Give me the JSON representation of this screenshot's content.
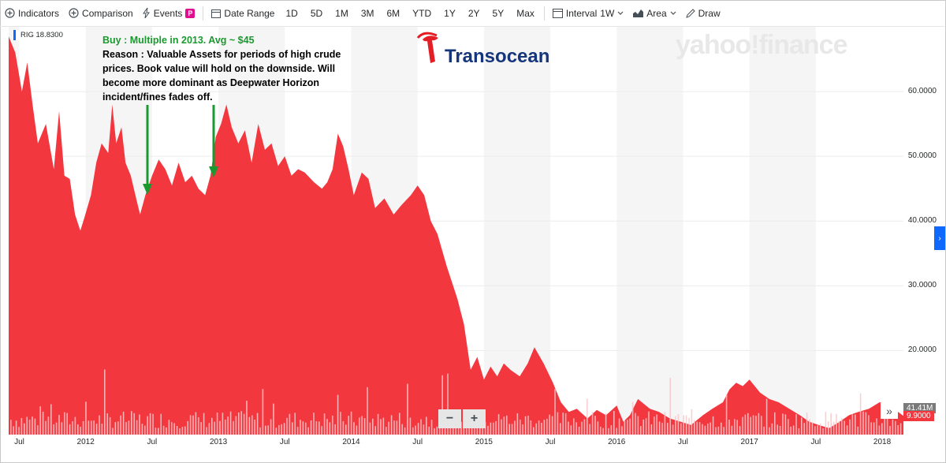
{
  "toolbar": {
    "indicators": "Indicators",
    "comparison": "Comparison",
    "events": "Events",
    "events_badge": "P",
    "date_range": "Date Range",
    "ranges": [
      "1D",
      "5D",
      "1M",
      "3M",
      "6M",
      "YTD",
      "1Y",
      "2Y",
      "5Y",
      "Max"
    ],
    "interval_label": "Interval",
    "interval_value": "1W",
    "chart_type": "Area",
    "draw": "Draw"
  },
  "ticker_label": "RIG 18.8300",
  "annotation": {
    "buy_line": "Buy : Multiple in 2013. Avg ~ $45",
    "reason": "Reason : Valuable Assets for periods of high crude prices. Book value will hold on the downside. Will become more dominant as Deepwater Horizon incident/fines fades off."
  },
  "logos": {
    "company": "Transocean",
    "site": "yahoo!finance"
  },
  "overlays": {
    "volume_label": "41.41M",
    "price_label": "9.9000"
  },
  "colors": {
    "area": "#f2373f",
    "volume_bar": "#f9c7c9",
    "shade": "#f5f5f5",
    "annotation_green": "#1a9a2e",
    "accent": "#0f69ff"
  },
  "chart_data": {
    "type": "area",
    "title": "",
    "ylim": [
      7,
      70
    ],
    "yticks": [
      "60.0000",
      "50.0000",
      "40.0000",
      "30.0000",
      "20.0000"
    ],
    "ytick_values": [
      60,
      50,
      40,
      30,
      20
    ],
    "xticks": [
      "Jul",
      "2012",
      "Jul",
      "2013",
      "Jul",
      "2014",
      "Jul",
      "2015",
      "Jul",
      "2016",
      "Jul",
      "2017",
      "Jul",
      "2018"
    ],
    "xtick_times": [
      2011.5,
      2012.0,
      2012.5,
      2013.0,
      2013.5,
      2014.0,
      2014.5,
      2015.0,
      2015.5,
      2016.0,
      2016.5,
      2017.0,
      2017.5,
      2018.0
    ],
    "x_range": [
      2011.42,
      2018.16
    ],
    "series": [
      {
        "x": [
          2011.42,
          2011.47,
          2011.52,
          2011.56,
          2011.6,
          2011.64,
          2011.7,
          2011.76,
          2011.8,
          2011.84,
          2011.88,
          2011.92,
          2011.96,
          2011.99,
          2012.04,
          2012.08,
          2012.12,
          2012.17,
          2012.2,
          2012.23,
          2012.27,
          2012.3,
          2012.34,
          2012.38,
          2012.41,
          2012.45,
          2012.5,
          2012.55,
          2012.6,
          2012.65,
          2012.7,
          2012.75,
          2012.8,
          2012.85,
          2012.9,
          2012.94,
          2012.98,
          2013.02,
          2013.06,
          2013.1,
          2013.15,
          2013.2,
          2013.25,
          2013.3,
          2013.35,
          2013.4,
          2013.45,
          2013.5,
          2013.55,
          2013.6,
          2013.65,
          2013.72,
          2013.78,
          2013.82,
          2013.86,
          2013.9,
          2013.94,
          2013.98,
          2014.02,
          2014.08,
          2014.13,
          2014.18,
          2014.25,
          2014.32,
          2014.38,
          2014.45,
          2014.5,
          2014.55,
          2014.6,
          2014.65,
          2014.72,
          2014.8,
          2014.85,
          2014.9,
          2014.95,
          2015.0,
          2015.05,
          2015.1,
          2015.15,
          2015.2,
          2015.27,
          2015.33,
          2015.38,
          2015.45,
          2015.52,
          2015.58,
          2015.64,
          2015.7,
          2015.78,
          2015.85,
          2015.92,
          2016.0,
          2016.05,
          2016.1,
          2016.16,
          2016.25,
          2016.32,
          2016.4,
          2016.48,
          2016.56,
          2016.65,
          2016.72,
          2016.8,
          2016.85,
          2016.9,
          2016.95,
          2017.0,
          2017.08,
          2017.15,
          2017.22,
          2017.3,
          2017.38,
          2017.45,
          2017.52,
          2017.6,
          2017.68,
          2017.75,
          2017.82,
          2017.9,
          2017.98,
          2018.05,
          2018.12,
          2018.16
        ],
        "y": [
          68.5,
          66.0,
          60.0,
          64.5,
          58.0,
          52.0,
          55.0,
          48.0,
          57.0,
          47.0,
          46.5,
          41.0,
          38.5,
          40.5,
          44.0,
          49.0,
          52.0,
          50.5,
          58.0,
          52.0,
          54.5,
          49.0,
          47.0,
          43.5,
          41.0,
          44.0,
          47.0,
          49.5,
          48.0,
          45.5,
          49.0,
          46.0,
          47.0,
          45.0,
          44.0,
          47.0,
          53.0,
          55.0,
          58.0,
          54.5,
          52.0,
          54.0,
          49.0,
          55.0,
          51.0,
          52.0,
          48.5,
          50.0,
          47.0,
          48.0,
          47.5,
          46.0,
          45.0,
          46.0,
          48.0,
          53.5,
          51.5,
          48.0,
          44.0,
          47.5,
          46.5,
          42.0,
          43.5,
          41.0,
          42.5,
          44.0,
          45.5,
          44.0,
          40.0,
          38.0,
          33.0,
          28.0,
          24.0,
          17.0,
          19.0,
          15.5,
          17.5,
          16.0,
          18.0,
          17.0,
          16.0,
          18.0,
          20.5,
          18.0,
          15.0,
          12.0,
          10.5,
          11.0,
          9.5,
          10.8,
          10.0,
          11.5,
          9.0,
          10.0,
          12.5,
          11.0,
          10.5,
          9.5,
          9.0,
          8.5,
          10.0,
          11.0,
          12.0,
          14.0,
          15.0,
          14.5,
          15.5,
          13.5,
          12.5,
          12.0,
          11.0,
          10.0,
          9.0,
          8.5,
          8.0,
          9.0,
          10.0,
          10.5,
          11.0,
          12.0,
          11.5,
          10.5,
          9.9
        ]
      }
    ]
  }
}
